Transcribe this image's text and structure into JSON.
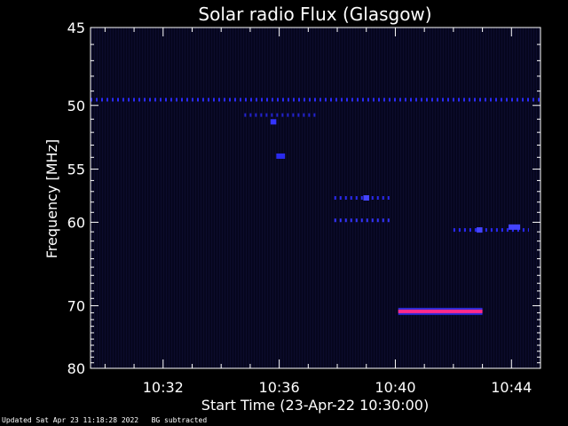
{
  "chart_data": {
    "type": "heatmap",
    "title": "Solar radio Flux (Glasgow)",
    "xlabel": "Start Time (23-Apr-22 10:30:00)",
    "ylabel": "Frequency [MHz]",
    "x_unit": "minutes after 10:30:00",
    "xlim": [
      29.5,
      45.0
    ],
    "ylim": [
      80,
      45
    ],
    "y_scale": "reciprocal",
    "x_ticks": [
      {
        "value": 32,
        "label": "10:32"
      },
      {
        "value": 36,
        "label": "10:36"
      },
      {
        "value": 40,
        "label": "10:40"
      },
      {
        "value": 44,
        "label": "10:44"
      }
    ],
    "y_ticks": [
      {
        "value": 45,
        "label": "45"
      },
      {
        "value": 50,
        "label": "50"
      },
      {
        "value": 55,
        "label": "55"
      },
      {
        "value": 60,
        "label": "60"
      },
      {
        "value": 70,
        "label": "70"
      },
      {
        "value": 80,
        "label": "80"
      }
    ],
    "background_color": "#06061e",
    "features": [
      {
        "name": "band",
        "y": 49.6,
        "x": [
          29.5,
          45.0
        ],
        "color": "#2a2aff",
        "style": "dashed"
      },
      {
        "name": "band",
        "y": 50.7,
        "x": [
          34.8,
          37.3
        ],
        "color": "#2222cc",
        "style": "dashed"
      },
      {
        "name": "spot",
        "y": 51.2,
        "x": [
          35.7,
          35.9
        ],
        "color": "#3333ff",
        "style": "solid"
      },
      {
        "name": "spot",
        "y": 53.9,
        "x": [
          35.9,
          36.2
        ],
        "color": "#2a2aee",
        "style": "solid"
      },
      {
        "name": "band",
        "y": 57.6,
        "x": [
          37.9,
          39.8
        ],
        "color": "#2a2aee",
        "style": "dashed"
      },
      {
        "name": "spot",
        "y": 57.6,
        "x": [
          38.9,
          39.1
        ],
        "color": "#4444ff",
        "style": "solid"
      },
      {
        "name": "band",
        "y": 59.8,
        "x": [
          37.9,
          39.8
        ],
        "color": "#3333ff",
        "style": "dashed"
      },
      {
        "name": "band",
        "y": 60.8,
        "x": [
          42.0,
          44.6
        ],
        "color": "#2a2aff",
        "style": "dashed"
      },
      {
        "name": "spot",
        "y": 60.8,
        "x": [
          42.8,
          43.0
        ],
        "color": "#4444ff",
        "style": "solid"
      },
      {
        "name": "spot",
        "y": 60.5,
        "x": [
          43.9,
          44.3
        ],
        "color": "#4444ff",
        "style": "solid"
      },
      {
        "name": "burst",
        "y": 70.8,
        "x": [
          40.1,
          43.0
        ],
        "color": "#ff2a8a",
        "style": "solid"
      }
    ]
  },
  "footer": {
    "updated": "Updated Sat Apr 23 11:18:28 2022",
    "note": "BG subtracted"
  }
}
